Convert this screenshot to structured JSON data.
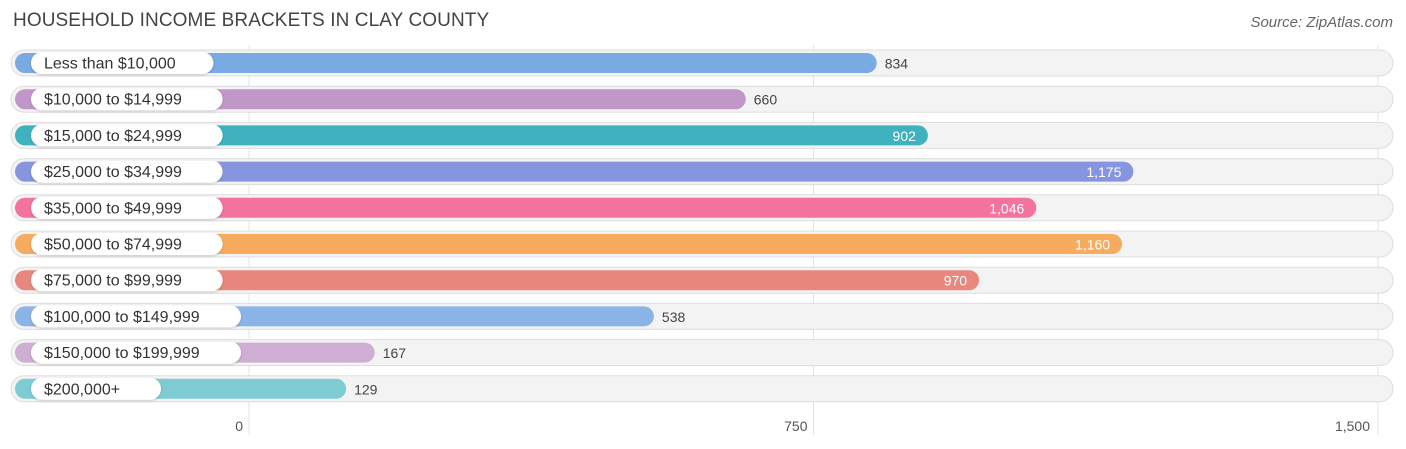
{
  "chart_data": {
    "type": "bar",
    "orientation": "horizontal",
    "title": "HOUSEHOLD INCOME BRACKETS IN CLAY COUNTY",
    "source": "Source: ZipAtlas.com",
    "categories": [
      "Less than $10,000",
      "$10,000 to $14,999",
      "$15,000 to $24,999",
      "$25,000 to $34,999",
      "$35,000 to $49,999",
      "$50,000 to $74,999",
      "$75,000 to $99,999",
      "$100,000 to $149,999",
      "$150,000 to $199,999",
      "$200,000+"
    ],
    "values": [
      834,
      660,
      902,
      1175,
      1046,
      1160,
      970,
      538,
      167,
      129
    ],
    "value_labels": [
      "834",
      "660",
      "902",
      "1,175",
      "1,046",
      "1,160",
      "970",
      "538",
      "167",
      "129"
    ],
    "colors": [
      "#7aaae3",
      "#c097c8",
      "#3fb3bd",
      "#8794e0",
      "#f2739b",
      "#f6ab5f",
      "#e8877e",
      "#8ab4e6",
      "#cfaed3",
      "#7ecbd4"
    ],
    "xlim": [
      0,
      1500
    ],
    "xticks": [
      0,
      750,
      1500
    ],
    "xtick_labels": [
      "0",
      "750",
      "1,500"
    ],
    "xlabel": "",
    "ylabel": "",
    "grid": true
  }
}
